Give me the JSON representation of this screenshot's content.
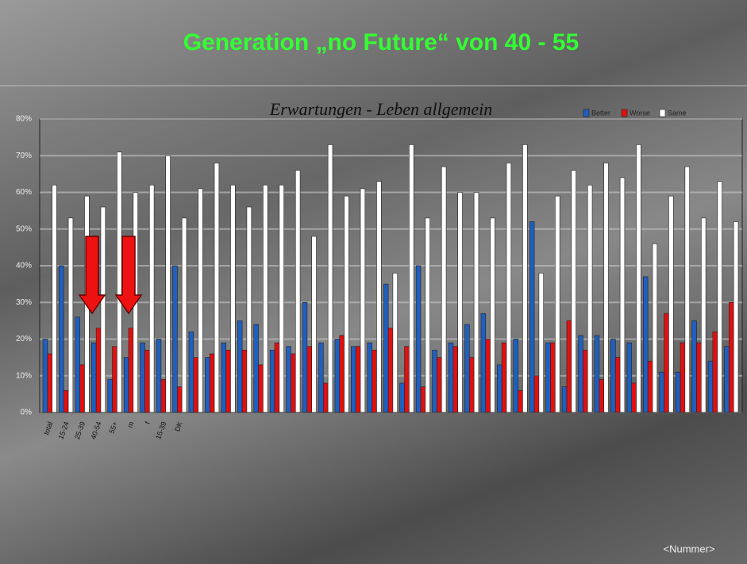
{
  "slide_title": "Generation „no Future“ von 40 - 55",
  "footer": "<Nummer>",
  "chart_data": {
    "type": "bar",
    "title": "Erwartungen - Leben allgemein",
    "categories": [
      "total",
      "15-24",
      "25-39",
      "40-54",
      "55+",
      "m",
      "f",
      "15-39",
      "DK",
      null,
      null,
      null,
      null,
      null,
      null,
      null,
      null,
      null,
      null,
      null,
      null,
      null,
      null,
      null,
      null,
      null,
      null,
      null,
      null,
      null,
      null,
      null,
      null,
      null,
      null,
      null,
      null,
      null,
      null,
      null,
      null,
      null,
      null
    ],
    "series": [
      {
        "name": "Better",
        "color": "#1f5fbf",
        "values": [
          20,
          40,
          26,
          19,
          9,
          15,
          19,
          20,
          40,
          22,
          15,
          19,
          25,
          24,
          17,
          18,
          30,
          19,
          20,
          18,
          19,
          35,
          8,
          40,
          17,
          19,
          24,
          27,
          13,
          20,
          52,
          19,
          7,
          21,
          21,
          20,
          19,
          37,
          11,
          11,
          25,
          14,
          18
        ]
      },
      {
        "name": "Worse",
        "color": "#e01010",
        "values": [
          16,
          6,
          13,
          23,
          18,
          23,
          17,
          9,
          7,
          15,
          16,
          17,
          17,
          13,
          19,
          16,
          18,
          8,
          21,
          18,
          17,
          23,
          18,
          7,
          15,
          18,
          15,
          20,
          19,
          6,
          10,
          19,
          25,
          17,
          9,
          15,
          8,
          14,
          27,
          19,
          19,
          22,
          30
        ]
      },
      {
        "name": "Same",
        "color": "#ffffff",
        "values": [
          62,
          53,
          59,
          56,
          71,
          60,
          62,
          70,
          53,
          61,
          68,
          62,
          56,
          62,
          62,
          66,
          48,
          73,
          59,
          61,
          63,
          38,
          73,
          53,
          67,
          60,
          60,
          53,
          68,
          73,
          38,
          59,
          66,
          62,
          68,
          64,
          73,
          46,
          59,
          67,
          53,
          63,
          52
        ]
      }
    ],
    "ylim": [
      0,
      80
    ],
    "yticks": [
      {
        "value": 0,
        "label": "0%"
      },
      {
        "value": 10,
        "label": "10%"
      },
      {
        "value": 20,
        "label": "20%"
      },
      {
        "value": 30,
        "label": "30%"
      },
      {
        "value": 40,
        "label": "40%"
      },
      {
        "value": 50,
        "label": "50%"
      },
      {
        "value": 60,
        "label": "60%"
      },
      {
        "value": 70,
        "label": "70%"
      },
      {
        "value": 80,
        "label": "80%"
      }
    ],
    "grid": true,
    "legend": "top-right"
  }
}
